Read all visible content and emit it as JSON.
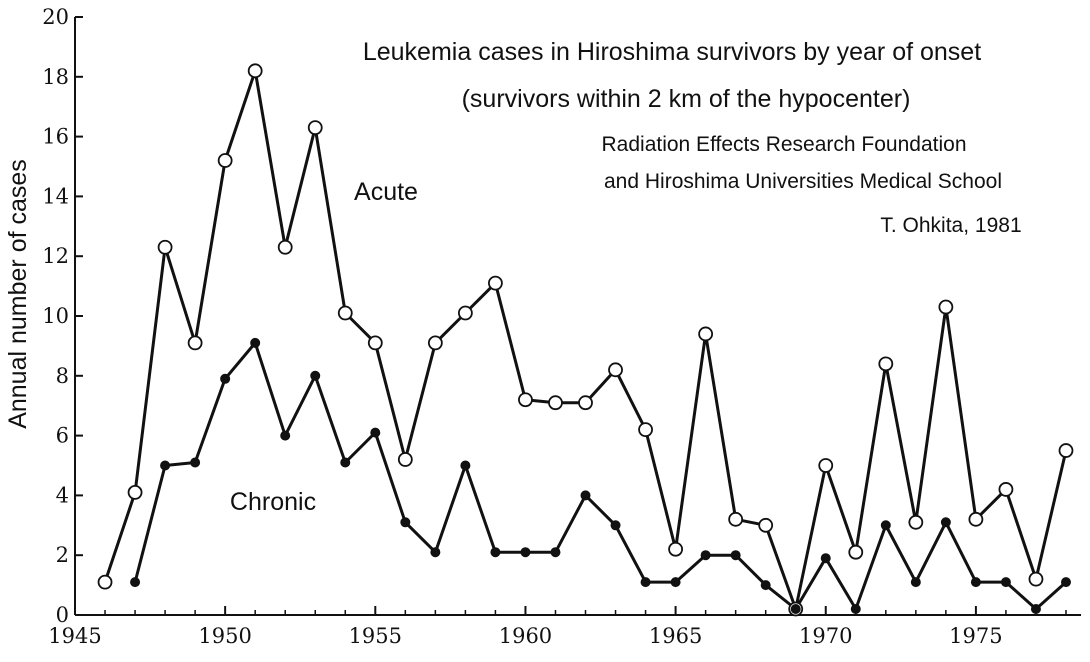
{
  "chart_data": {
    "type": "line",
    "title": "Leukemia cases in Hiroshima survivors by year of onset",
    "subtitle": "(survivors within 2 km of the hypocenter)",
    "source_lines": [
      "Radiation Effects Research Foundation",
      "and Hiroshima Universities Medical School",
      "T. Ohkita, 1981"
    ],
    "xlabel": "",
    "ylabel": "Annual number of cases",
    "xlim": [
      1945,
      1978.5
    ],
    "ylim": [
      0,
      20
    ],
    "xticks": [
      1945,
      1950,
      1955,
      1960,
      1965,
      1970,
      1975
    ],
    "yticks": [
      0,
      2,
      4,
      6,
      8,
      10,
      12,
      14,
      16,
      18,
      20
    ],
    "grid": false,
    "legend": "none",
    "series": [
      {
        "name": "Acute",
        "marker": "open-circle",
        "color": "#111111",
        "x": [
          1946,
          1947,
          1948,
          1949,
          1950,
          1951,
          1952,
          1953,
          1954,
          1955,
          1956,
          1957,
          1958,
          1959,
          1960,
          1961,
          1962,
          1963,
          1964,
          1965,
          1966,
          1967,
          1968,
          1969,
          1970,
          1971,
          1972,
          1973,
          1974,
          1975,
          1976,
          1977,
          1978
        ],
        "y": [
          1.1,
          4.1,
          12.3,
          9.1,
          15.2,
          18.2,
          12.3,
          16.3,
          10.1,
          9.1,
          5.2,
          9.1,
          10.1,
          11.1,
          7.2,
          7.1,
          7.1,
          8.2,
          6.2,
          2.2,
          9.4,
          3.2,
          3.0,
          0.2,
          5.0,
          2.1,
          8.4,
          3.1,
          10.3,
          3.2,
          4.2,
          1.2,
          5.5
        ]
      },
      {
        "name": "Chronic",
        "marker": "filled-circle",
        "color": "#111111",
        "x": [
          1947,
          1948,
          1949,
          1950,
          1951,
          1952,
          1953,
          1954,
          1955,
          1956,
          1957,
          1958,
          1959,
          1960,
          1961,
          1962,
          1963,
          1964,
          1965,
          1966,
          1967,
          1968,
          1969,
          1970,
          1971,
          1972,
          1973,
          1974,
          1975,
          1976,
          1977,
          1978
        ],
        "y": [
          1.1,
          5.0,
          5.1,
          7.9,
          9.1,
          6.0,
          8.0,
          5.1,
          6.1,
          3.1,
          2.1,
          5.0,
          2.1,
          2.1,
          2.1,
          4.0,
          3.0,
          1.1,
          1.1,
          2.0,
          2.0,
          1.0,
          0.2,
          1.9,
          0.2,
          3.0,
          1.1,
          3.1,
          1.1,
          1.1,
          0.2,
          1.1
        ]
      }
    ]
  }
}
